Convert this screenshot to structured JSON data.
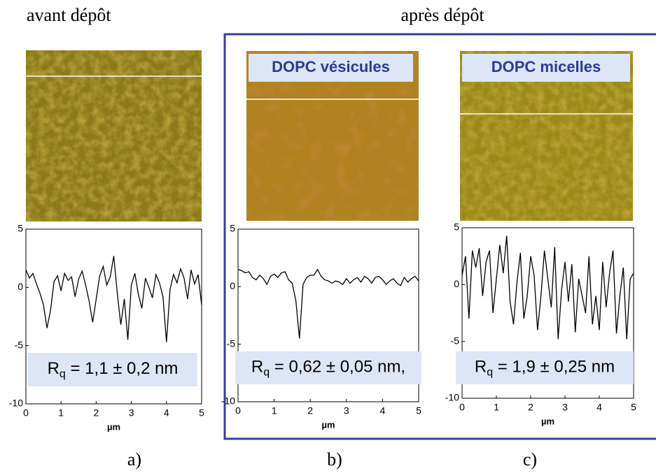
{
  "headers": [
    "avant dépôt",
    "après dépôt"
  ],
  "chart_data": [
    {
      "type": "line",
      "panel_label": "a)",
      "x_label": "µm",
      "annotation": {
        "main": "R",
        "sub": "q",
        "rest": " = 1,1 ± 0,2 nm"
      },
      "x": [
        0,
        0.1,
        0.2,
        0.3,
        0.4,
        0.5,
        0.6,
        0.7,
        0.8,
        0.9,
        1,
        1.1,
        1.2,
        1.3,
        1.4,
        1.5,
        1.6,
        1.7,
        1.8,
        1.9,
        2,
        2.1,
        2.2,
        2.3,
        2.4,
        2.5,
        2.6,
        2.7,
        2.8,
        2.9,
        3,
        3.1,
        3.2,
        3.3,
        3.4,
        3.5,
        3.6,
        3.7,
        3.8,
        3.9,
        4,
        4.1,
        4.2,
        4.3,
        4.4,
        4.5,
        4.6,
        4.7,
        4.8,
        4.9,
        5
      ],
      "series": [
        {
          "color": "#000000",
          "values": [
            1.5,
            0.8,
            1.2,
            0.3,
            -0.5,
            -1.5,
            -3.5,
            -2,
            0.5,
            1,
            -0.3,
            1.2,
            0.6,
            0.9,
            -0.8,
            0.7,
            1.4,
            0.2,
            -1.2,
            -3,
            -1,
            1,
            1.8,
            0.2,
            0.9,
            2.7,
            -0.5,
            -3.2,
            -1,
            -4.5,
            0.2,
            1.2,
            -0.6,
            -1.8,
            0.8,
            0,
            -0.9,
            1.1,
            0.4,
            -0.8,
            -4.7,
            -0.2,
            1.1,
            0.4,
            1.6,
            0.8,
            -1,
            1.5,
            0.3,
            1.1,
            -1.5
          ]
        }
      ],
      "xlim": [
        0,
        5
      ],
      "xticks": [
        0,
        1,
        2,
        3,
        4,
        5
      ],
      "ylim": [
        -10,
        5
      ],
      "yticks": [
        -10,
        -5,
        0,
        5
      ]
    },
    {
      "type": "line",
      "panel_label": "b)",
      "image_label": "DOPC vésicules",
      "x_label": "µm",
      "annotation": {
        "main": "R",
        "sub": "q",
        "rest": " = 0,62 ± 0,05 nm,"
      },
      "x": [
        0,
        0.1,
        0.2,
        0.3,
        0.4,
        0.5,
        0.6,
        0.7,
        0.8,
        0.9,
        1,
        1.1,
        1.2,
        1.3,
        1.4,
        1.5,
        1.6,
        1.7,
        1.8,
        1.9,
        2,
        2.1,
        2.2,
        2.3,
        2.4,
        2.5,
        2.6,
        2.7,
        2.8,
        2.9,
        3,
        3.1,
        3.2,
        3.3,
        3.4,
        3.5,
        3.6,
        3.7,
        3.8,
        3.9,
        4,
        4.1,
        4.2,
        4.3,
        4.4,
        4.5,
        4.6,
        4.7,
        4.8,
        4.9,
        5
      ],
      "series": [
        {
          "color": "#000000",
          "values": [
            1.5,
            1.4,
            1.2,
            1.3,
            0.8,
            0.6,
            1,
            0.7,
            0.2,
            0.9,
            1.1,
            0.8,
            1.2,
            1.3,
            0.6,
            0.3,
            -1.2,
            -4.5,
            0.2,
            0.8,
            1,
            1,
            1.5,
            0.9,
            0.6,
            0.5,
            0.3,
            0.5,
            0.4,
            0.2,
            0.7,
            0.3,
            0.6,
            0.8,
            0.4,
            0.9,
            0.7,
            0.3,
            0.8,
            0.9,
            0.6,
            0.2,
            0.5,
            0.7,
            0.3,
            0.1,
            0.8,
            0.4,
            0.7,
            0.9,
            0.5
          ]
        }
      ],
      "xlim": [
        0,
        5
      ],
      "xticks": [
        0,
        1,
        2,
        3,
        4,
        5
      ],
      "ylim": [
        -10,
        5
      ],
      "yticks": [
        -10,
        -5,
        0,
        5
      ]
    },
    {
      "type": "line",
      "panel_label": "c)",
      "image_label": "DOPC micelles",
      "x_label": "µm",
      "annotation": {
        "main": "R",
        "sub": "q",
        "rest": " = 1,9 ± 0,25 nm"
      },
      "x": [
        0,
        0.1,
        0.2,
        0.3,
        0.4,
        0.5,
        0.6,
        0.7,
        0.8,
        0.9,
        1,
        1.1,
        1.2,
        1.3,
        1.4,
        1.5,
        1.6,
        1.7,
        1.8,
        1.9,
        2,
        2.1,
        2.2,
        2.3,
        2.4,
        2.5,
        2.6,
        2.7,
        2.8,
        2.9,
        3,
        3.1,
        3.2,
        3.3,
        3.4,
        3.5,
        3.6,
        3.7,
        3.8,
        3.9,
        4,
        4.1,
        4.2,
        4.3,
        4.4,
        4.5,
        4.6,
        4.7,
        4.8,
        4.9,
        5
      ],
      "series": [
        {
          "color": "#000000",
          "values": [
            0.8,
            2.5,
            -3,
            3,
            1.5,
            3.2,
            -1,
            2,
            3,
            -2.5,
            0.5,
            3.5,
            1,
            4.3,
            -1.5,
            -3.5,
            0.2,
            2.8,
            -3,
            -1,
            2.5,
            0.8,
            -4,
            -1,
            3,
            0.5,
            -2,
            3.3,
            -4.8,
            -0.5,
            2,
            -1.5,
            1.8,
            -4.2,
            0.5,
            -1,
            -2.5,
            2.5,
            -3.5,
            -1,
            -4,
            2,
            -2,
            1,
            3,
            -4.3,
            -1,
            1.5,
            -4.8,
            0.5,
            1
          ]
        }
      ],
      "xlim": [
        0,
        5
      ],
      "xticks": [
        0,
        1,
        2,
        3,
        4,
        5
      ],
      "ylim": [
        -10,
        5
      ],
      "yticks": [
        -10,
        -5,
        0,
        5
      ]
    }
  ]
}
